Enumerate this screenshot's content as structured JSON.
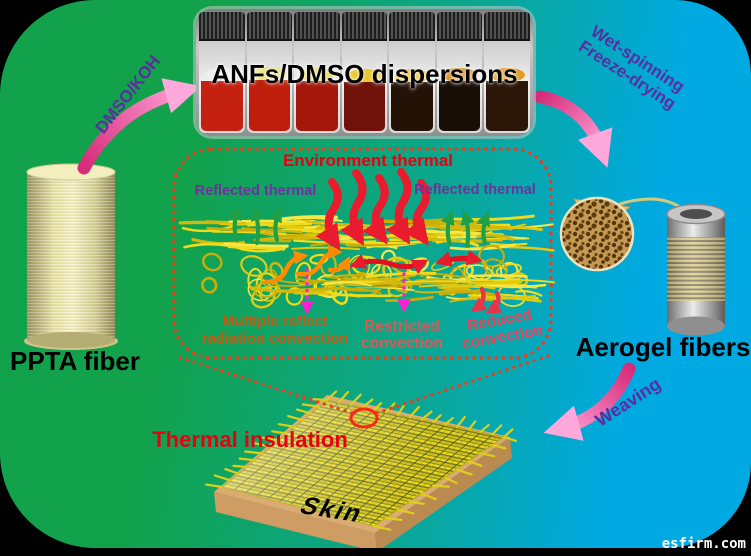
{
  "materials": {
    "ppta": "PPTA fiber",
    "dispersions": "ANFs/DMSO dispersions",
    "aerogel": "Aerogel fibers"
  },
  "steps": {
    "dmso_koh": "DMSO/KOH",
    "wet_spinning": "Wet-spinning",
    "freeze_drying": "Freeze-drying",
    "weaving": "Weaving"
  },
  "mechanism": {
    "environment_thermal": "Environment thermal",
    "reflected_thermal_left": "Reflected thermal",
    "reflected_thermal_right": "Reflected thermal",
    "multiple_reflect_1": "Multiple reflect",
    "multiple_reflect_2": "radiation convection",
    "restricted_1": "Restricted",
    "restricted_2": "convection",
    "reduced_1": "Reduced",
    "reduced_2": "convection"
  },
  "fabric": {
    "thermal_insulation": "Thermal insulation",
    "skin": "Skin"
  },
  "watermark": "esfirm.com",
  "colors": {
    "bg_left": "#12a24c",
    "bg_mid": "#0ba78f",
    "bg_right": "#00a9e2",
    "step_text": "#5b2da0",
    "heat_red": "#e8000f",
    "reflected_purple": "#7030a0",
    "multiple_orange": "#c55a11",
    "restricted_red": "#e05555",
    "reduced_pink": "#ee4055",
    "box_border": "#e8401c",
    "fiber_yellow": "#e8d41a",
    "arrow_pink": "#f768a8",
    "material_label": "#000000",
    "watermark_white": "#ffffff"
  },
  "vials": [
    {
      "liquid": "#c42110",
      "tint": "#eeeeee",
      "level": 50
    },
    {
      "liquid": "#bf1e0c",
      "tint": "#e8e06a",
      "level": 51
    },
    {
      "liquid": "#a4170a",
      "tint": "#e8d24a",
      "level": 50
    },
    {
      "liquid": "#70120a",
      "tint": "#e8c414",
      "level": 49
    },
    {
      "liquid": "#241206",
      "tint": "#f0b810",
      "level": 49
    },
    {
      "liquid": "#190e05",
      "tint": "#d57f06",
      "level": 50
    },
    {
      "liquid": "#2a1506",
      "tint": "#e09410",
      "level": 50
    }
  ]
}
